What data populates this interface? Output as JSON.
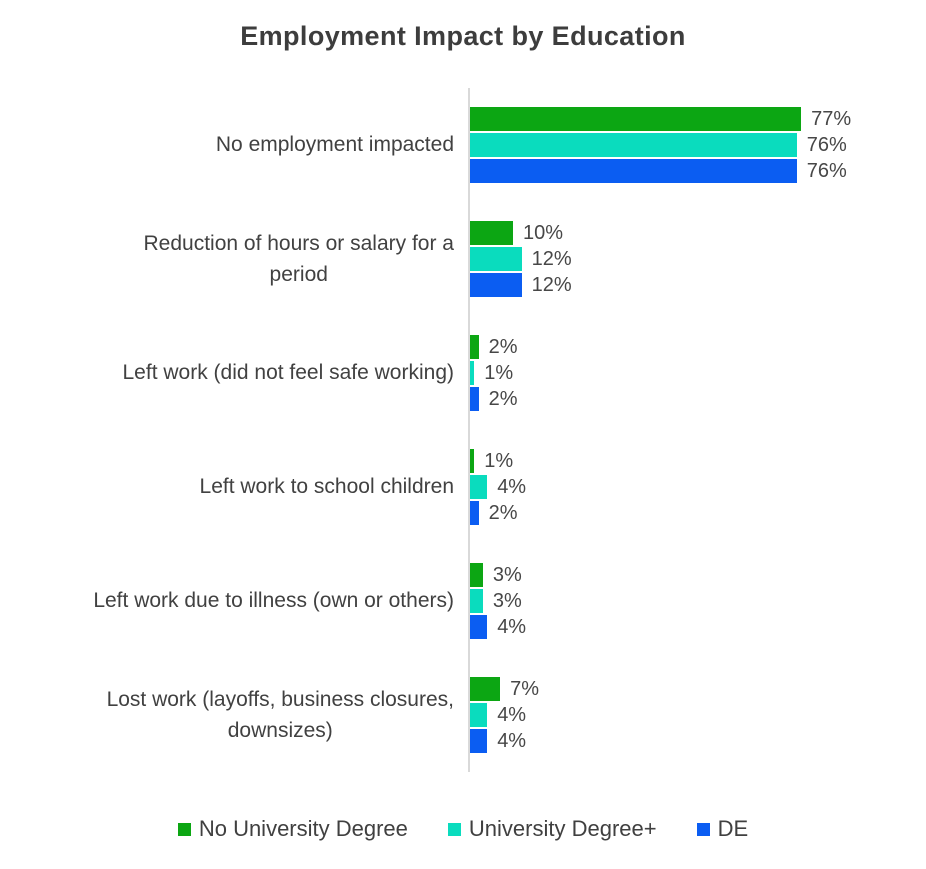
{
  "chart_data": {
    "type": "bar",
    "orientation": "horizontal",
    "title": "Employment Impact by Education",
    "categories": [
      {
        "label": "No employment impacted",
        "lines": [
          "No employment impacted"
        ]
      },
      {
        "label": "Reduction of hours or salary for a period",
        "lines": [
          "Reduction of hours or salary for a",
          "period"
        ]
      },
      {
        "label": "Left work (did not feel safe working)",
        "lines": [
          "Left work (did not feel safe working)"
        ]
      },
      {
        "label": "Left work to school children",
        "lines": [
          "Left work to school children"
        ]
      },
      {
        "label": "Left work due to illness (own or others)",
        "lines": [
          "Left work due to illness (own or others)"
        ]
      },
      {
        "label": "Lost work (layoffs, business closures, downsizes)",
        "lines": [
          "Lost work (layoffs, business closures,",
          "downsizes)"
        ]
      }
    ],
    "series": [
      {
        "name": "No University Degree",
        "color": "#0ca613",
        "values": [
          77,
          10,
          2,
          1,
          3,
          7
        ]
      },
      {
        "name": "University Degree+",
        "color": "#0adcbe",
        "values": [
          76,
          12,
          1,
          4,
          3,
          4
        ]
      },
      {
        "name": "DE",
        "color": "#0b5df2",
        "values": [
          76,
          12,
          2,
          2,
          4,
          4
        ]
      }
    ],
    "value_suffix": "%",
    "data_labels": [
      "77%",
      "76%",
      "76%",
      "10%",
      "12%",
      "12%",
      "2%",
      "1%",
      "2%",
      "1%",
      "4%",
      "2%",
      "3%",
      "3%",
      "4%",
      "7%",
      "4%",
      "4%"
    ],
    "xlim": [
      0,
      100
    ],
    "grid": false,
    "legend_position": "bottom",
    "axis_line_color": "#d9d9d9",
    "text_color": "#404040",
    "background_color": "#ffffff"
  }
}
